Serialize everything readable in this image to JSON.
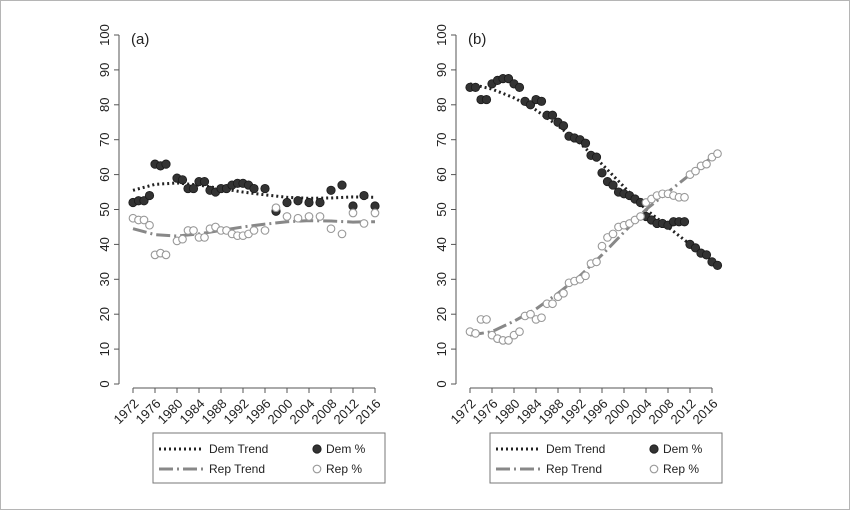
{
  "chart_data": [
    {
      "type": "scatter",
      "panel_label": "(a)",
      "ylim": [
        0,
        100
      ],
      "yticks": [
        "0",
        "10",
        "20",
        "30",
        "40",
        "50",
        "60",
        "70",
        "80",
        "90",
        "100"
      ],
      "xlim": [
        1970,
        2018
      ],
      "xticks": [
        "1972",
        "1976",
        "1980",
        "1984",
        "1988",
        "1992",
        "1996",
        "2000",
        "2004",
        "2008",
        "2012",
        "2016"
      ],
      "grid": false,
      "legend_position": "bottom",
      "series": [
        {
          "name": "Dem %",
          "kind": "points",
          "marker": "filled-circle",
          "color": "#333333",
          "x": [
            1972,
            1973,
            1974,
            1975,
            1976,
            1977,
            1978,
            1980,
            1981,
            1982,
            1983,
            1984,
            1985,
            1986,
            1987,
            1988,
            1989,
            1990,
            1991,
            1992,
            1993,
            1994,
            1996,
            1998,
            2000,
            2002,
            2004,
            2006,
            2008,
            2010,
            2012,
            2014,
            2016
          ],
          "y": [
            52,
            52.5,
            52.5,
            54,
            63,
            62.5,
            63,
            59,
            58.5,
            56,
            56,
            58,
            58,
            55.5,
            55,
            56,
            56,
            57,
            57.5,
            57.5,
            57,
            56,
            56,
            49.5,
            52,
            52.5,
            52,
            52,
            55.5,
            57,
            51,
            54,
            51
          ]
        },
        {
          "name": "Rep %",
          "kind": "points",
          "marker": "hollow-circle",
          "color": "#999999",
          "x": [
            1972,
            1973,
            1974,
            1975,
            1976,
            1977,
            1978,
            1980,
            1981,
            1982,
            1983,
            1984,
            1985,
            1986,
            1987,
            1988,
            1989,
            1990,
            1991,
            1992,
            1993,
            1994,
            1996,
            1998,
            2000,
            2002,
            2004,
            2006,
            2008,
            2010,
            2012,
            2014,
            2016
          ],
          "y": [
            47.5,
            47,
            47,
            45.5,
            37,
            37.5,
            37,
            41,
            41.5,
            44,
            44,
            42,
            42,
            44.5,
            45,
            44,
            44,
            43,
            42.5,
            42.5,
            43,
            44,
            44,
            50.5,
            48,
            47.5,
            48,
            48,
            44.5,
            43,
            49,
            46,
            49
          ]
        },
        {
          "name": "Dem Trend",
          "kind": "line",
          "style": "dotted",
          "color": "#222222",
          "x": [
            1972,
            1976,
            1980,
            1984,
            1988,
            1992,
            1996,
            2000,
            2004,
            2008,
            2012,
            2016
          ],
          "y": [
            55.5,
            57.2,
            57.6,
            57,
            56,
            55,
            54.2,
            53.5,
            53.2,
            53.3,
            53.6,
            53.5
          ]
        },
        {
          "name": "Rep Trend",
          "kind": "line",
          "style": "dashdot",
          "color": "#888888",
          "x": [
            1972,
            1976,
            1980,
            1984,
            1988,
            1992,
            1996,
            2000,
            2004,
            2008,
            2012,
            2016
          ],
          "y": [
            44.5,
            42.8,
            42.4,
            43,
            44,
            45,
            45.8,
            46.5,
            46.8,
            46.7,
            46.4,
            46.5
          ]
        }
      ]
    },
    {
      "type": "scatter",
      "panel_label": "(b)",
      "ylim": [
        0,
        100
      ],
      "yticks": [
        "0",
        "10",
        "20",
        "30",
        "40",
        "50",
        "60",
        "70",
        "80",
        "90",
        "100"
      ],
      "xlim": [
        1970,
        2018
      ],
      "xticks": [
        "1972",
        "1976",
        "1980",
        "1984",
        "1988",
        "1992",
        "1996",
        "2000",
        "2004",
        "2008",
        "2012",
        "2016"
      ],
      "grid": false,
      "legend_position": "bottom",
      "series": [
        {
          "name": "Dem %",
          "kind": "points",
          "marker": "filled-circle",
          "color": "#333333",
          "x": [
            1972,
            1973,
            1974,
            1975,
            1976,
            1977,
            1978,
            1979,
            1980,
            1981,
            1982,
            1983,
            1984,
            1985,
            1986,
            1987,
            1988,
            1989,
            1990,
            1991,
            1992,
            1993,
            1994,
            1995,
            1996,
            1997,
            1998,
            1999,
            2000,
            2001,
            2002,
            2003,
            2004,
            2005,
            2006,
            2007,
            2008,
            2009,
            2010,
            2011,
            2012,
            2013,
            2014,
            2015,
            2016,
            2017
          ],
          "y": [
            85,
            85,
            81.5,
            81.5,
            86,
            87,
            87.5,
            87.5,
            86,
            85,
            81,
            80,
            81.5,
            81,
            77,
            77,
            75,
            74,
            71,
            70.5,
            70,
            69,
            65.5,
            65,
            60.5,
            58,
            57,
            55,
            54.5,
            54,
            53,
            52,
            48,
            47,
            46,
            46,
            45.5,
            46.5,
            46.5,
            46.5,
            40,
            39,
            37.5,
            37,
            35,
            34
          ]
        },
        {
          "name": "Rep %",
          "kind": "points",
          "marker": "hollow-circle",
          "color": "#999999",
          "x": [
            1972,
            1973,
            1974,
            1975,
            1976,
            1977,
            1978,
            1979,
            1980,
            1981,
            1982,
            1983,
            1984,
            1985,
            1986,
            1987,
            1988,
            1989,
            1990,
            1991,
            1992,
            1993,
            1994,
            1995,
            1996,
            1997,
            1998,
            1999,
            2000,
            2001,
            2002,
            2003,
            2004,
            2005,
            2006,
            2007,
            2008,
            2009,
            2010,
            2011,
            2012,
            2013,
            2014,
            2015,
            2016,
            2017
          ],
          "y": [
            15,
            14.5,
            18.5,
            18.5,
            14,
            13,
            12.5,
            12.5,
            14,
            15,
            19.5,
            20,
            18.5,
            19,
            23,
            23,
            25,
            26,
            29,
            29.5,
            30,
            31,
            34.5,
            35,
            39.5,
            42,
            43,
            45,
            45.5,
            46,
            47,
            48,
            52,
            53,
            54,
            54.5,
            54.5,
            54,
            53.5,
            53.5,
            60,
            61,
            62.5,
            63,
            65,
            66
          ]
        },
        {
          "name": "Dem Trend",
          "kind": "line",
          "style": "dotted",
          "color": "#222222",
          "x": [
            1972,
            1976,
            1980,
            1984,
            1988,
            1992,
            1996,
            2000,
            2004,
            2008,
            2012,
            2016
          ],
          "y": [
            86,
            84.5,
            82,
            78.5,
            74,
            69,
            63,
            56.5,
            50,
            45,
            40,
            35
          ]
        },
        {
          "name": "Rep Trend",
          "kind": "line",
          "style": "dashdot",
          "color": "#888888",
          "x": [
            1972,
            1976,
            1980,
            1984,
            1988,
            1992,
            1996,
            2000,
            2004,
            2008,
            2012,
            2016
          ],
          "y": [
            14,
            15,
            18,
            21.5,
            26,
            31,
            37,
            43.5,
            50,
            55,
            60,
            65
          ]
        }
      ]
    }
  ],
  "legend": {
    "items": [
      {
        "label": "Dem Trend",
        "swatch": "dotted-line",
        "color": "#222222"
      },
      {
        "label": "Dem %",
        "swatch": "filled-circle",
        "color": "#333333"
      },
      {
        "label": "Rep Trend",
        "swatch": "dashdot-line",
        "color": "#888888"
      },
      {
        "label": "Rep %",
        "swatch": "hollow-circle",
        "color": "#999999"
      }
    ]
  }
}
